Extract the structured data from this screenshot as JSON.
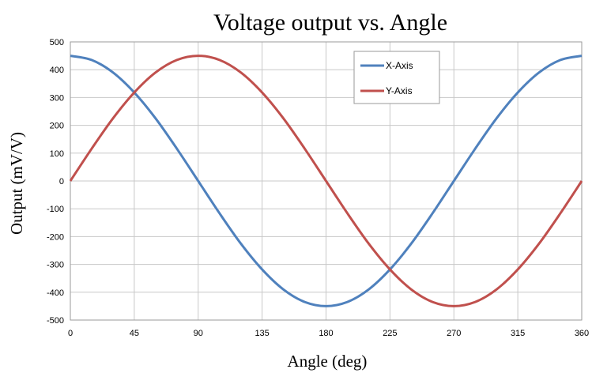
{
  "chart_data": {
    "type": "line",
    "title": "Voltage output vs. Angle",
    "xlabel": "Angle (deg)",
    "ylabel": "Output (mV/V)",
    "xlim": [
      0,
      360
    ],
    "ylim": [
      -500,
      500
    ],
    "x_ticks": [
      "0",
      "45",
      "90",
      "135",
      "180",
      "225",
      "270",
      "315",
      "360"
    ],
    "y_ticks": [
      "500",
      "400",
      "300",
      "200",
      "100",
      "0",
      "-100",
      "-200",
      "-300",
      "-400",
      "-500"
    ],
    "grid": true,
    "legend_position": "top-right",
    "x": [
      0,
      15,
      30,
      45,
      60,
      75,
      90,
      105,
      120,
      135,
      150,
      165,
      180,
      195,
      210,
      225,
      240,
      255,
      270,
      285,
      300,
      315,
      330,
      345,
      360
    ],
    "series": [
      {
        "name": "X-Axis",
        "color": "#4f81bd",
        "values": [
          450,
          435,
          390,
          318,
          225,
          116,
          0,
          -116,
          -225,
          -318,
          -390,
          -435,
          -450,
          -435,
          -390,
          -318,
          -225,
          -116,
          0,
          116,
          225,
          318,
          390,
          435,
          450
        ]
      },
      {
        "name": "Y-Axis",
        "color": "#c0504d",
        "values": [
          0,
          116,
          225,
          318,
          390,
          435,
          450,
          435,
          390,
          318,
          225,
          116,
          0,
          -116,
          -225,
          -318,
          -390,
          -435,
          -450,
          -435,
          -390,
          -318,
          -225,
          -116,
          0
        ]
      }
    ]
  }
}
